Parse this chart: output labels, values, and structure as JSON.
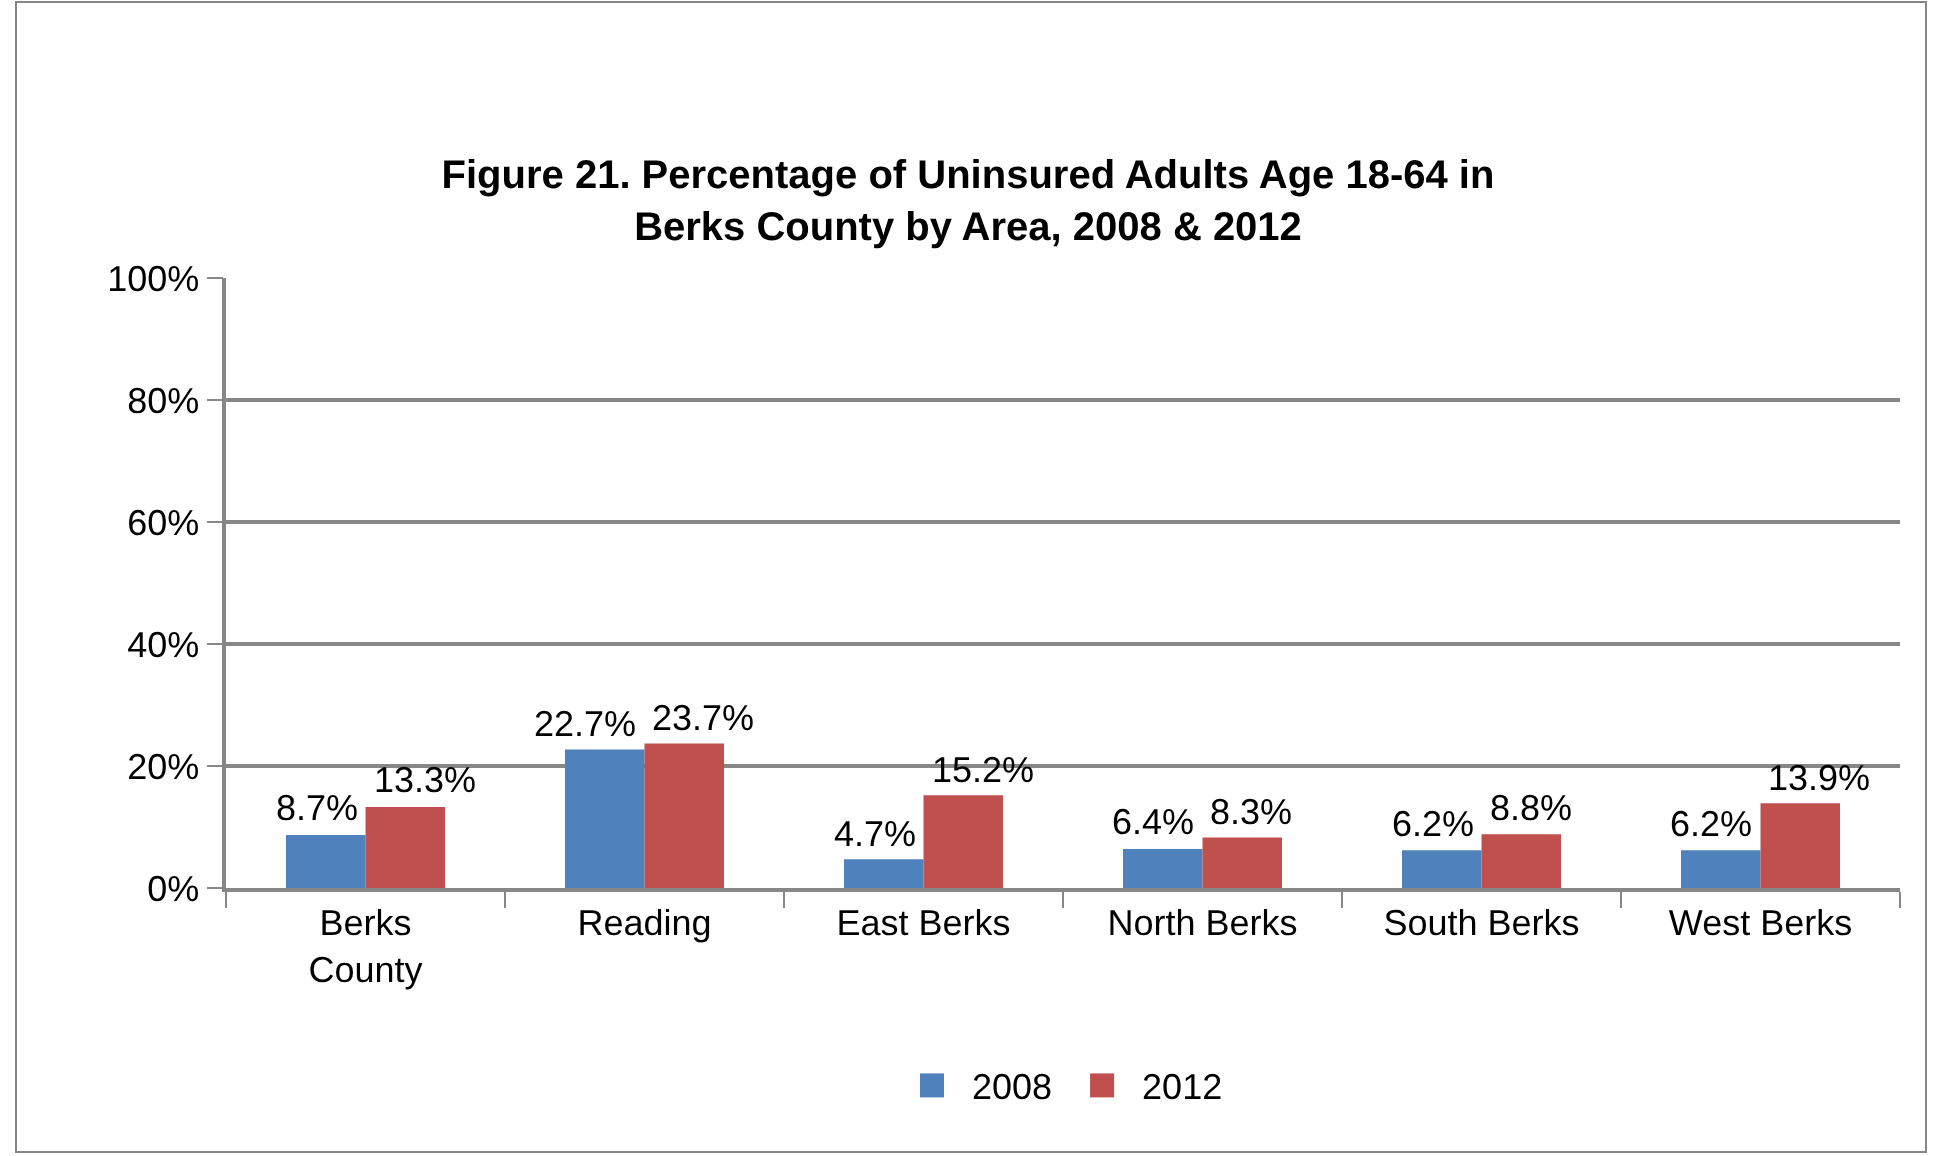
{
  "chart_data": {
    "type": "bar",
    "title": "Figure 21. Percentage of Uninsured Adults Age 18-64 in Berks County by Area, 2008 & 2012",
    "categories": [
      "Berks County",
      "Reading",
      "East Berks",
      "North Berks",
      "South Berks",
      "West Berks"
    ],
    "series": [
      {
        "name": "2008",
        "color": "#4f81bd",
        "values": [
          8.7,
          22.7,
          4.7,
          6.4,
          6.2,
          6.2
        ],
        "value_labels": [
          "8.7%",
          "22.7%",
          "4.7%",
          "6.4%",
          "6.2%",
          "6.2%"
        ]
      },
      {
        "name": "2012",
        "color": "#c0504d",
        "values": [
          13.3,
          23.7,
          15.2,
          8.3,
          8.8,
          13.9
        ],
        "value_labels": [
          "13.3%",
          "23.7%",
          "15.2%",
          "8.3%",
          "8.8%",
          "13.9%"
        ]
      }
    ],
    "ylim": [
      0,
      100
    ],
    "yticks": [
      {
        "value": 0,
        "label": "0%"
      },
      {
        "value": 20,
        "label": "20%"
      },
      {
        "value": 40,
        "label": "40%"
      },
      {
        "value": 60,
        "label": "60%"
      },
      {
        "value": 80,
        "label": "80%"
      },
      {
        "value": 100,
        "label": "100%"
      }
    ],
    "grid": "y",
    "legend": "bottom"
  }
}
